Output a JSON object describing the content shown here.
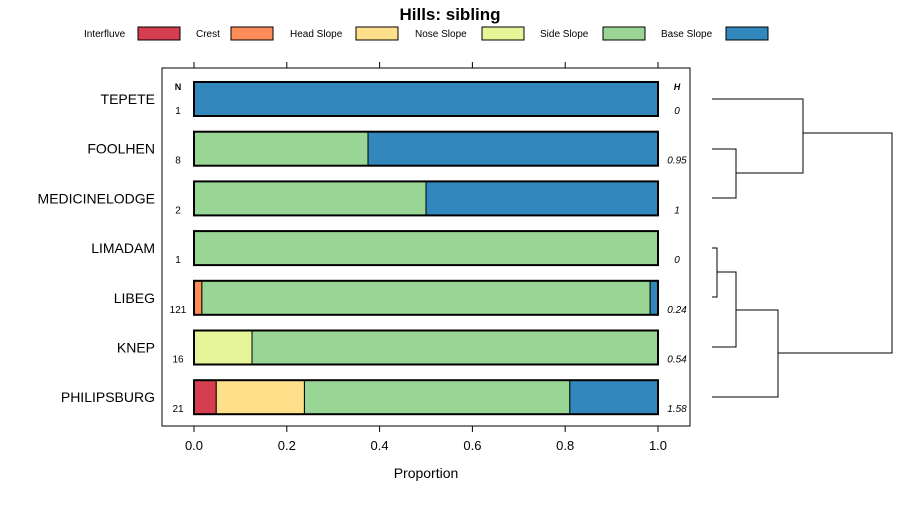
{
  "chart_data": {
    "type": "bar",
    "orientation": "horizontal",
    "stacked": true,
    "title": "Hills: sibling",
    "xlabel": "Proportion",
    "xlim": [
      0,
      1
    ],
    "x_ticks": [
      "0.0",
      "0.2",
      "0.4",
      "0.6",
      "0.8",
      "1.0"
    ],
    "x_tick_values": [
      0,
      0.2,
      0.4,
      0.6,
      0.8,
      1.0
    ],
    "n_header": "N",
    "h_header": "H",
    "legend": [
      {
        "name": "Interfluve",
        "color": "#d53e4f"
      },
      {
        "name": "Crest",
        "color": "#fc8d59"
      },
      {
        "name": "Head Slope",
        "color": "#fee08b"
      },
      {
        "name": "Nose Slope",
        "color": "#e6f598"
      },
      {
        "name": "Side Slope",
        "color": "#99d594"
      },
      {
        "name": "Base Slope",
        "color": "#3288bd"
      }
    ],
    "rows": [
      {
        "label": "TEPETE",
        "n": "1",
        "h": "0",
        "values": [
          0,
          0,
          0,
          0,
          0,
          1.0
        ]
      },
      {
        "label": "FOOLHEN",
        "n": "8",
        "h": "0.95",
        "values": [
          0,
          0,
          0,
          0,
          0.375,
          0.625
        ]
      },
      {
        "label": "MEDICINELODGE",
        "n": "2",
        "h": "1",
        "values": [
          0,
          0,
          0,
          0,
          0.5,
          0.5
        ]
      },
      {
        "label": "LIMADAM",
        "n": "1",
        "h": "0",
        "values": [
          0,
          0,
          0,
          0,
          1.0,
          0
        ]
      },
      {
        "label": "LIBEG",
        "n": "121",
        "h": "0.24",
        "values": [
          0,
          0.017,
          0,
          0,
          0.966,
          0.017
        ]
      },
      {
        "label": "KNEP",
        "n": "16",
        "h": "0.54",
        "values": [
          0,
          0,
          0,
          0.125,
          0.875,
          0
        ]
      },
      {
        "label": "PHILIPSBURG",
        "n": "21",
        "h": "1.58",
        "values": [
          0.048,
          0,
          0.19,
          0,
          0.572,
          0.19
        ]
      }
    ],
    "dendrogram": "hierarchical clustering of rows (TEPETE, FOOLHEN, MEDICINELODGE | LIMADAM, LIBEG, KNEP, PHILIPSBURG)"
  }
}
